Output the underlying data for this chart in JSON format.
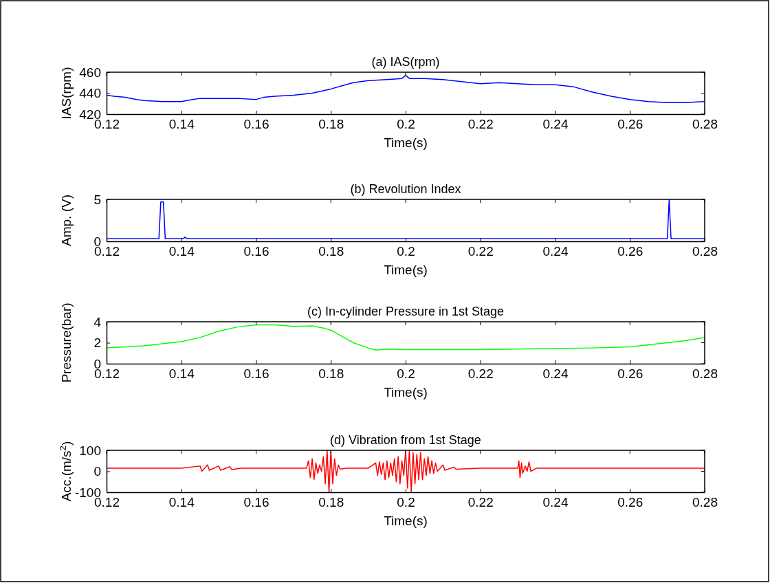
{
  "chart_data": [
    {
      "type": "line",
      "title": "(a) IAS(rpm)",
      "xlabel": "Time(s)",
      "ylabel": "IAS(rpm)",
      "xlim": [
        0.12,
        0.28
      ],
      "ylim": [
        420,
        460
      ],
      "xticks": [
        0.12,
        0.14,
        0.16,
        0.18,
        0.2,
        0.22,
        0.24,
        0.26,
        0.28
      ],
      "yticks": [
        420,
        440,
        460
      ],
      "x": [
        0.12,
        0.122,
        0.125,
        0.128,
        0.13,
        0.135,
        0.14,
        0.143,
        0.145,
        0.15,
        0.155,
        0.16,
        0.162,
        0.165,
        0.17,
        0.175,
        0.18,
        0.183,
        0.186,
        0.19,
        0.195,
        0.199,
        0.2,
        0.201,
        0.205,
        0.21,
        0.215,
        0.22,
        0.225,
        0.23,
        0.235,
        0.24,
        0.245,
        0.25,
        0.255,
        0.26,
        0.265,
        0.27,
        0.275,
        0.28
      ],
      "series": [
        {
          "color": "#0000ff",
          "values": [
            438,
            437,
            436,
            434,
            433,
            432,
            432,
            434,
            435,
            435,
            435,
            434,
            436,
            437,
            438,
            440,
            444,
            447,
            450,
            452,
            453,
            454,
            457,
            454,
            454,
            453,
            451,
            449,
            450,
            449,
            448,
            448,
            446,
            441,
            437,
            434,
            432,
            431,
            431,
            432
          ]
        }
      ]
    },
    {
      "type": "line",
      "title": "(b) Revolution Index",
      "xlabel": "Time(s)",
      "ylabel": "Amp. (V)",
      "xlim": [
        0.12,
        0.28
      ],
      "ylim": [
        0,
        5
      ],
      "xticks": [
        0.12,
        0.14,
        0.16,
        0.18,
        0.2,
        0.22,
        0.24,
        0.26,
        0.28
      ],
      "yticks": [
        0,
        5
      ],
      "x": [
        0.12,
        0.134,
        0.1345,
        0.1352,
        0.1357,
        0.1405,
        0.141,
        0.1415,
        0.27,
        0.2705,
        0.271,
        0.28
      ],
      "series": [
        {
          "color": "#0000ff",
          "values": [
            0.3,
            0.3,
            4.7,
            4.7,
            0.3,
            0.3,
            0.5,
            0.3,
            0.3,
            5,
            0.3,
            0.3
          ]
        }
      ]
    },
    {
      "type": "line",
      "title": "(c) In-cylinder Pressure in 1st Stage",
      "xlabel": "Time(s)",
      "ylabel": "Pressure(bar)",
      "xlim": [
        0.12,
        0.28
      ],
      "ylim": [
        0,
        4
      ],
      "xticks": [
        0.12,
        0.14,
        0.16,
        0.18,
        0.2,
        0.22,
        0.24,
        0.26,
        0.28
      ],
      "yticks": [
        0,
        2,
        4
      ],
      "x": [
        0.12,
        0.13,
        0.14,
        0.145,
        0.15,
        0.155,
        0.16,
        0.165,
        0.17,
        0.175,
        0.178,
        0.18,
        0.183,
        0.186,
        0.19,
        0.192,
        0.195,
        0.2,
        0.21,
        0.22,
        0.23,
        0.24,
        0.25,
        0.26,
        0.265,
        0.27,
        0.275,
        0.28
      ],
      "series": [
        {
          "color": "#00ff00",
          "values": [
            1.5,
            1.7,
            2.1,
            2.5,
            3.1,
            3.5,
            3.7,
            3.7,
            3.55,
            3.6,
            3.4,
            3.2,
            2.6,
            2.0,
            1.5,
            1.3,
            1.4,
            1.35,
            1.35,
            1.35,
            1.4,
            1.45,
            1.5,
            1.6,
            1.8,
            2.0,
            2.2,
            2.5
          ]
        }
      ]
    },
    {
      "type": "line",
      "title": "(d) Vibration from 1st Stage",
      "xlabel": "Time(s)",
      "ylabel": "Acc.(m/s$^{2}$)",
      "xlim": [
        0.12,
        0.28
      ],
      "ylim": [
        -100,
        100
      ],
      "xticks": [
        0.12,
        0.14,
        0.16,
        0.18,
        0.2,
        0.22,
        0.24,
        0.26,
        0.28
      ],
      "yticks": [
        -100,
        0,
        100
      ],
      "x": [
        0.12,
        0.13,
        0.14,
        0.145,
        0.1455,
        0.147,
        0.1475,
        0.15,
        0.1505,
        0.153,
        0.1535,
        0.156,
        0.165,
        0.17,
        0.1735,
        0.174,
        0.1745,
        0.175,
        0.1755,
        0.176,
        0.1765,
        0.177,
        0.1775,
        0.178,
        0.1785,
        0.179,
        0.1795,
        0.18,
        0.1805,
        0.181,
        0.1815,
        0.182,
        0.1825,
        0.184,
        0.19,
        0.192,
        0.1925,
        0.193,
        0.1935,
        0.194,
        0.1945,
        0.195,
        0.1955,
        0.196,
        0.1965,
        0.197,
        0.1975,
        0.198,
        0.1985,
        0.199,
        0.1995,
        0.2,
        0.2005,
        0.201,
        0.2015,
        0.202,
        0.2025,
        0.203,
        0.2035,
        0.204,
        0.2045,
        0.205,
        0.2055,
        0.206,
        0.2065,
        0.207,
        0.2075,
        0.208,
        0.2085,
        0.21,
        0.2105,
        0.213,
        0.2135,
        0.22,
        0.23,
        0.2303,
        0.2306,
        0.231,
        0.2313,
        0.232,
        0.2325,
        0.233,
        0.2335,
        0.235,
        0.28
      ],
      "series": [
        {
          "color": "#ff0000",
          "values": [
            15,
            15,
            15,
            25,
            0,
            30,
            5,
            25,
            5,
            22,
            8,
            15,
            15,
            15,
            15,
            50,
            -30,
            60,
            -40,
            40,
            -10,
            30,
            0,
            70,
            -60,
            100,
            -100,
            100,
            -60,
            60,
            -20,
            30,
            10,
            15,
            15,
            40,
            -20,
            45,
            -15,
            40,
            -40,
            50,
            -30,
            40,
            -20,
            60,
            -50,
            70,
            -60,
            50,
            -20,
            100,
            -80,
            100,
            -100,
            90,
            -60,
            80,
            -40,
            90,
            -40,
            60,
            -20,
            70,
            -10,
            50,
            -10,
            40,
            0,
            30,
            5,
            20,
            10,
            15,
            15,
            50,
            -30,
            40,
            -10,
            25,
            0,
            45,
            0,
            15,
            15
          ]
        }
      ]
    }
  ]
}
